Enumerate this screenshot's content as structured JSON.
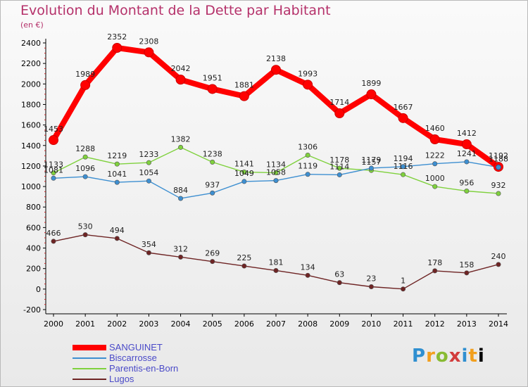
{
  "chart_data": {
    "type": "line",
    "title": "Evolution du Montant de la Dette par Habitant",
    "unit": "(en €)",
    "x": [
      "2000",
      "2001",
      "2002",
      "2003",
      "2004",
      "2005",
      "2006",
      "2007",
      "2008",
      "2009",
      "2010",
      "2011",
      "2012",
      "2013",
      "2014"
    ],
    "ylim": [
      -200,
      2400
    ],
    "yticks": [
      -200,
      0,
      200,
      400,
      600,
      800,
      1000,
      1200,
      1400,
      1600,
      1800,
      2000,
      2200,
      2400
    ],
    "grid": false,
    "legend_position": "bottom-left",
    "series": [
      {
        "name": "SANGUINET",
        "color": "#ff0000",
        "values": [
          1453,
          1989,
          2352,
          2308,
          2042,
          1951,
          1881,
          2138,
          1993,
          1714,
          1899,
          1667,
          1460,
          1412,
          1192
        ]
      },
      {
        "name": "Biscarrosse",
        "color": "#3d8fd1",
        "values": [
          1081,
          1096,
          1041,
          1054,
          884,
          937,
          1049,
          1058,
          1119,
          1114,
          1179,
          1194,
          1222,
          1241,
          1188
        ]
      },
      {
        "name": "Parentis-en-Born",
        "color": "#7fd13d",
        "values": [
          1133,
          1288,
          1219,
          1233,
          1382,
          1238,
          1141,
          1134,
          1306,
          1178,
          1157,
          1116,
          1000,
          956,
          932
        ]
      },
      {
        "name": "Lugos",
        "color": "#6e2424",
        "values": [
          466,
          530,
          494,
          354,
          312,
          269,
          225,
          181,
          134,
          63,
          23,
          1,
          178,
          158,
          240
        ]
      }
    ]
  },
  "logo": {
    "letters": [
      "P",
      "r",
      "o",
      "x",
      "i",
      "t",
      "i"
    ]
  }
}
